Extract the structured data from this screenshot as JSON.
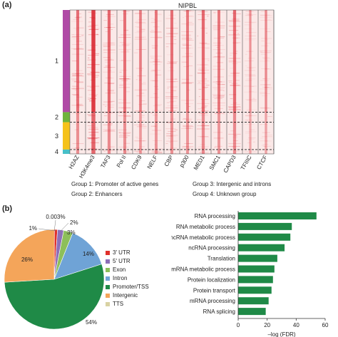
{
  "panel_a": {
    "label": "(a)",
    "title": "NIPBL",
    "group_numbers": [
      "1",
      "2",
      "3",
      "4"
    ],
    "group_colors": [
      "#b04aa6",
      "#6fb33d",
      "#f5c21b",
      "#47c0c8"
    ],
    "group_fractions": [
      0.71,
      0.07,
      0.19,
      0.03
    ],
    "tracks": [
      "H2AZ",
      "H3K4me3",
      "TAF3",
      "Pol II",
      "CDK9",
      "NELF",
      "CBP",
      "p300",
      "MED1",
      "SMC1",
      "CAPD3",
      "TFIIIC",
      "CTCF"
    ],
    "track_intensity": [
      0.55,
      0.95,
      0.6,
      0.55,
      0.45,
      0.5,
      0.55,
      0.5,
      0.6,
      0.5,
      0.6,
      0.3,
      0.35
    ],
    "heatmap_color": "#d8202a",
    "group_legend": [
      "Group 1: Promoter of active genes",
      "Group 2: Enhancers",
      "Group 3: Intergenic and introns",
      "Group 4: Unknown group"
    ]
  },
  "panel_b": {
    "label": "(b)",
    "chart_data": [
      {
        "type": "pie",
        "categories": [
          "3' UTR",
          "5' UTR",
          "Exon",
          "Intron",
          "Promoter/TSS",
          "Intergenic",
          "TTS"
        ],
        "values": [
          1,
          2,
          3,
          14,
          54,
          26,
          0.003
        ],
        "colors": [
          "#e0302b",
          "#8e6fb8",
          "#8dbf5a",
          "#6fa3d6",
          "#1f8a47",
          "#f4a55a",
          "#d9d2a3"
        ],
        "labels": {
          "3' UTR": "1%",
          "5' UTR": "2%",
          "Exon": "3%",
          "Intron": "14%",
          "Promoter/TSS": "54%",
          "Intergenic": "26%",
          "TTS": "0.003%"
        },
        "legend": [
          "3′ UTR",
          "5′ UTR",
          "Exon",
          "Intron",
          "Promoter/TSS",
          "Intergenic",
          "TTS"
        ]
      },
      {
        "type": "bar",
        "orientation": "horizontal",
        "categories": [
          "RNA processing",
          "RNA metabolic process",
          "ncRNA metabolic process",
          "ncRNA processing",
          "Translation",
          "mRNA metabolic process",
          "Protein localization",
          "Protein transport",
          "mRNA processing",
          "RNA splicing"
        ],
        "values": [
          54,
          37,
          36,
          32,
          27,
          25,
          24,
          23,
          21,
          19
        ],
        "xlabel": "–log (FDR)",
        "xlim": [
          0,
          60
        ],
        "xticks": [
          "0",
          "20",
          "40",
          "60"
        ],
        "bar_color": "#1f8a47"
      }
    ]
  }
}
